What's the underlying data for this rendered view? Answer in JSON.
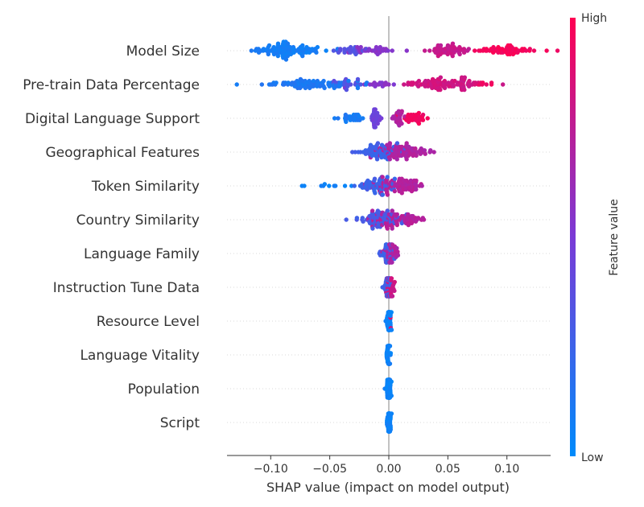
{
  "chart_data": {
    "type": "scatter",
    "subtype": "shap_beeswarm",
    "xlabel": "SHAP value (impact on model output)",
    "x_ticks": [
      -0.1,
      -0.05,
      0.0,
      0.05,
      0.1
    ],
    "x_tick_labels": [
      "−0.10",
      "−0.05",
      "0.00",
      "0.05",
      "0.10"
    ],
    "xlim": [
      -0.137,
      0.137
    ],
    "colorbar": {
      "high_label": "High",
      "low_label": "Low",
      "title": "Feature value",
      "low_color": "#008bfb",
      "mid_color": "#7a3ad6",
      "high_color": "#ff0052"
    },
    "features": [
      {
        "name": "Model Size",
        "groups": [
          {
            "center": -0.085,
            "spread": 0.035,
            "count": 110,
            "value": 0.08
          },
          {
            "center": -0.035,
            "spread": 0.015,
            "count": 25,
            "value": 0.35
          },
          {
            "center": -0.01,
            "spread": 0.022,
            "count": 30,
            "value": 0.55
          },
          {
            "center": 0.05,
            "spread": 0.02,
            "count": 60,
            "value": 0.78
          },
          {
            "center": 0.1,
            "spread": 0.025,
            "count": 60,
            "value": 0.97
          }
        ]
      },
      {
        "name": "Pre-train Data Percentage",
        "groups": [
          {
            "center": -0.06,
            "spread": 0.045,
            "count": 90,
            "value": 0.12
          },
          {
            "center": -0.035,
            "spread": 0.012,
            "count": 20,
            "value": 0.35
          },
          {
            "center": -0.01,
            "spread": 0.018,
            "count": 18,
            "value": 0.55
          },
          {
            "center": 0.045,
            "spread": 0.035,
            "count": 100,
            "value": 0.82
          },
          {
            "center": 0.08,
            "spread": 0.01,
            "count": 8,
            "value": 0.95
          }
        ]
      },
      {
        "name": "Digital Language Support",
        "groups": [
          {
            "center": -0.033,
            "spread": 0.015,
            "count": 28,
            "value": 0.1
          },
          {
            "center": -0.012,
            "spread": 0.006,
            "count": 28,
            "value": 0.45
          },
          {
            "center": 0.008,
            "spread": 0.005,
            "count": 26,
            "value": 0.7
          },
          {
            "center": 0.023,
            "spread": 0.012,
            "count": 35,
            "value": 0.95
          }
        ]
      },
      {
        "name": "Geographical Features",
        "groups": [
          {
            "center": -0.01,
            "spread": 0.02,
            "count": 70,
            "value": 0.25
          },
          {
            "center": 0.008,
            "spread": 0.025,
            "count": 90,
            "value": 0.7
          }
        ]
      },
      {
        "name": "Token Similarity",
        "groups": [
          {
            "center": -0.045,
            "spread": 0.035,
            "count": 10,
            "value": 0.05
          },
          {
            "center": -0.01,
            "spread": 0.02,
            "count": 60,
            "value": 0.25
          },
          {
            "center": 0.008,
            "spread": 0.025,
            "count": 90,
            "value": 0.72
          }
        ]
      },
      {
        "name": "Country Similarity",
        "groups": [
          {
            "center": -0.008,
            "spread": 0.022,
            "count": 70,
            "value": 0.3
          },
          {
            "center": 0.008,
            "spread": 0.025,
            "count": 80,
            "value": 0.72
          }
        ]
      },
      {
        "name": "Language Family",
        "groups": [
          {
            "center": -0.002,
            "spread": 0.007,
            "count": 40,
            "value": 0.25
          },
          {
            "center": 0.002,
            "spread": 0.007,
            "count": 45,
            "value": 0.7
          }
        ]
      },
      {
        "name": "Instruction Tune Data",
        "groups": [
          {
            "center": -0.001,
            "spread": 0.004,
            "count": 35,
            "value": 0.25
          },
          {
            "center": 0.001,
            "spread": 0.004,
            "count": 35,
            "value": 0.8
          }
        ]
      },
      {
        "name": "Resource Level",
        "groups": [
          {
            "center": 0.0,
            "spread": 0.002,
            "count": 60,
            "value": 0.05
          },
          {
            "center": 0.002,
            "spread": 0.002,
            "count": 2,
            "value": 0.9
          }
        ]
      },
      {
        "name": "Language Vitality",
        "groups": [
          {
            "center": 0.0,
            "spread": 0.002,
            "count": 60,
            "value": 0.05
          }
        ]
      },
      {
        "name": "Population",
        "groups": [
          {
            "center": 0.0,
            "spread": 0.002,
            "count": 60,
            "value": 0.05
          }
        ]
      },
      {
        "name": "Script",
        "groups": [
          {
            "center": 0.0,
            "spread": 0.002,
            "count": 60,
            "value": 0.05
          }
        ]
      }
    ]
  }
}
